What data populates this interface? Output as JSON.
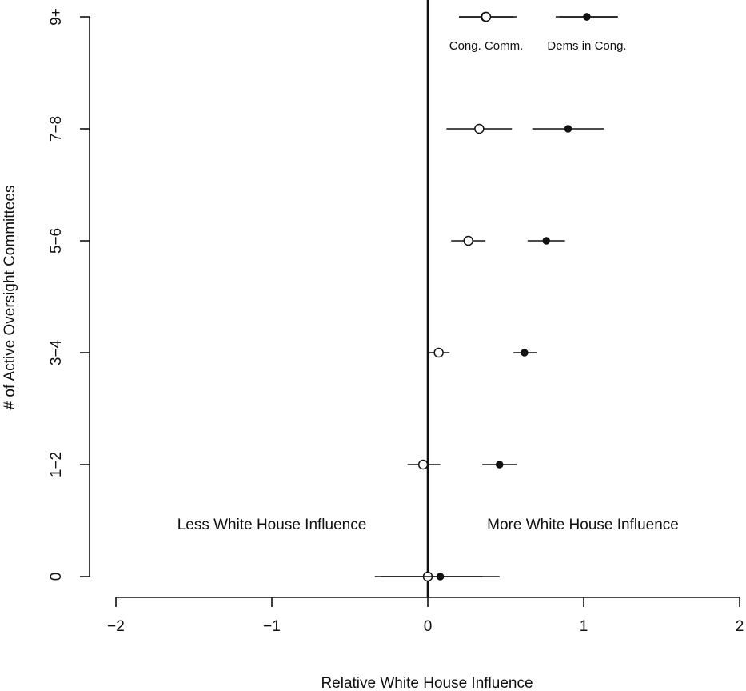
{
  "chart_data": {
    "type": "scatter",
    "title": "",
    "xlabel": "Relative White House Influence",
    "ylabel": "# of Active Oversight Committees",
    "xlim": [
      -2,
      2
    ],
    "x_ticks": [
      "−2",
      "−1",
      "0",
      "1",
      "2"
    ],
    "x_tick_values": [
      -2,
      -1,
      0,
      1,
      2
    ],
    "categories": [
      "0",
      "1−2",
      "3−4",
      "5−6",
      "7−8",
      "9+"
    ],
    "reference_line_x": 0,
    "grid": false,
    "annotations": {
      "left": "Less White House Influence",
      "right": "More White House Influence"
    },
    "series": [
      {
        "name": "Cong. Comm.",
        "marker": "open-circle",
        "points": [
          {
            "category": "0",
            "estimate": 0.0,
            "low": -0.34,
            "high": 0.35
          },
          {
            "category": "1−2",
            "estimate": -0.03,
            "low": -0.13,
            "high": 0.08
          },
          {
            "category": "3−4",
            "estimate": 0.07,
            "low": 0.01,
            "high": 0.14
          },
          {
            "category": "5−6",
            "estimate": 0.26,
            "low": 0.15,
            "high": 0.37
          },
          {
            "category": "7−8",
            "estimate": 0.33,
            "low": 0.12,
            "high": 0.54
          },
          {
            "category": "9+",
            "estimate": 0.37,
            "low": 0.2,
            "high": 0.55
          }
        ]
      },
      {
        "name": "Dems in Cong.",
        "marker": "filled-circle",
        "points": [
          {
            "category": "0",
            "estimate": 0.08,
            "low": -0.3,
            "high": 0.46
          },
          {
            "category": "1−2",
            "estimate": 0.46,
            "low": 0.35,
            "high": 0.57
          },
          {
            "category": "3−4",
            "estimate": 0.62,
            "low": 0.55,
            "high": 0.7
          },
          {
            "category": "5−6",
            "estimate": 0.76,
            "low": 0.64,
            "high": 0.88
          },
          {
            "category": "7−8",
            "estimate": 0.9,
            "low": 0.67,
            "high": 1.13
          },
          {
            "category": "9+",
            "estimate": 1.02,
            "low": 0.82,
            "high": 1.22
          }
        ]
      }
    ],
    "legend": {
      "placement": "top-right"
    }
  }
}
